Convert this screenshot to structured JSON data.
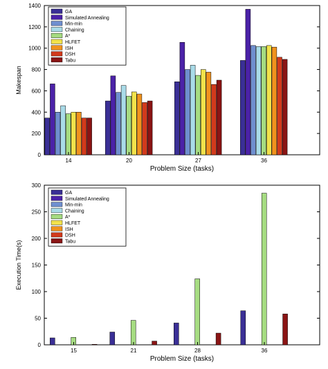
{
  "chart_data": [
    {
      "type": "bar",
      "title": "",
      "xlabel": "Problem Size (tasks)",
      "ylabel": "Makespan",
      "ylim": [
        0,
        1400
      ],
      "yticks": [
        0,
        200,
        400,
        600,
        800,
        1000,
        1200,
        1400
      ],
      "grid": false,
      "legend_position": "top-left",
      "categories": [
        "14",
        "20",
        "27",
        "36"
      ],
      "series": [
        {
          "name": "GA",
          "color": "#3a2f96",
          "values": [
            345,
            505,
            685,
            885
          ]
        },
        {
          "name": "Simulated Annealing",
          "color": "#4b22a8",
          "values": [
            665,
            740,
            1055,
            1365
          ]
        },
        {
          "name": "Min-min",
          "color": "#6f8fcf",
          "values": [
            400,
            585,
            800,
            1025
          ]
        },
        {
          "name": "Chaining",
          "color": "#a9dbe8",
          "values": [
            460,
            650,
            840,
            1015
          ]
        },
        {
          "name": "A*",
          "color": "#a6dc82",
          "values": [
            385,
            550,
            745,
            1015
          ]
        },
        {
          "name": "HLFET",
          "color": "#f2e24b",
          "values": [
            400,
            590,
            800,
            1025
          ]
        },
        {
          "name": "ISH",
          "color": "#f0921e",
          "values": [
            400,
            570,
            775,
            1010
          ]
        },
        {
          "name": "DSH",
          "color": "#d23a1c",
          "values": [
            345,
            490,
            660,
            915
          ]
        },
        {
          "name": "Tabu",
          "color": "#8a1414",
          "values": [
            345,
            505,
            700,
            895
          ]
        }
      ]
    },
    {
      "type": "bar",
      "title": "",
      "xlabel": "Problem Size (tasks)",
      "ylabel": "Execution Time(s)",
      "ylim": [
        0,
        300
      ],
      "yticks": [
        0,
        50,
        100,
        150,
        200,
        250,
        300
      ],
      "grid": false,
      "legend_position": "top-left",
      "categories": [
        "15",
        "21",
        "28",
        "36"
      ],
      "series": [
        {
          "name": "GA",
          "color": "#3a2f96",
          "values": [
            13,
            24,
            41,
            64
          ]
        },
        {
          "name": "Simulated Annealing",
          "color": "#4b22a8",
          "values": [
            0,
            0,
            0,
            0
          ]
        },
        {
          "name": "Min-min",
          "color": "#6f8fcf",
          "values": [
            0,
            0,
            0,
            0
          ]
        },
        {
          "name": "Chaining",
          "color": "#a9dbe8",
          "values": [
            0,
            0,
            0,
            0
          ]
        },
        {
          "name": "A*",
          "color": "#a6dc82",
          "values": [
            14,
            46,
            124,
            285
          ]
        },
        {
          "name": "HLFET",
          "color": "#f2e24b",
          "values": [
            0,
            0,
            0,
            0
          ]
        },
        {
          "name": "ISH",
          "color": "#f0921e",
          "values": [
            0,
            0,
            0,
            0
          ]
        },
        {
          "name": "DSH",
          "color": "#d23a1c",
          "values": [
            0,
            0,
            0,
            0
          ]
        },
        {
          "name": "Tabu",
          "color": "#8a1414",
          "values": [
            1,
            7,
            22,
            58
          ]
        }
      ]
    }
  ]
}
